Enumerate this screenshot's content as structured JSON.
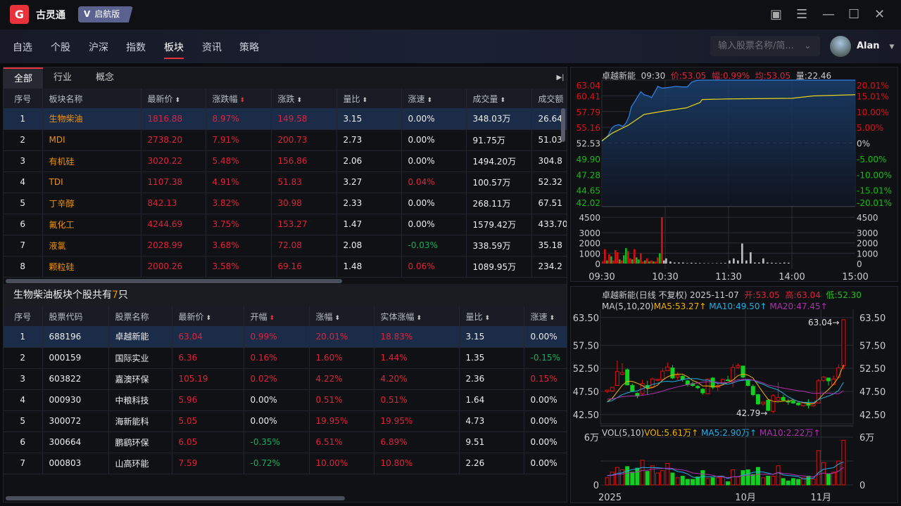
{
  "app": {
    "name": "古灵通",
    "edition": "启航版",
    "logo": "G"
  },
  "window_controls": [
    "screen-icon",
    "menu-icon",
    "minimize-icon",
    "maximize-icon",
    "close-icon"
  ],
  "nav": [
    {
      "label": "自选"
    },
    {
      "label": "个股"
    },
    {
      "label": "沪深"
    },
    {
      "label": "指数"
    },
    {
      "label": "板块",
      "active": true
    },
    {
      "label": "资讯"
    },
    {
      "label": "策略"
    }
  ],
  "search": {
    "placeholder": "输入股票名称/简..."
  },
  "user": {
    "name": "Alan"
  },
  "sector_tabs": [
    {
      "label": "全部",
      "active": true
    },
    {
      "label": "行业"
    },
    {
      "label": "概念"
    }
  ],
  "sector_table": {
    "columns": [
      "序号",
      "板块名称",
      "最新价",
      "涨跌幅",
      "涨跌",
      "量比",
      "涨速",
      "成交量",
      "成交额"
    ],
    "rows": [
      [
        "1",
        "生物柴油",
        "1816.88",
        "8.97%",
        "149.58",
        "3.15",
        "0.00%",
        "348.03万",
        "26.64"
      ],
      [
        "2",
        "MDI",
        "2738.20",
        "7.91%",
        "200.73",
        "2.73",
        "0.00%",
        "91.75万",
        "51.03"
      ],
      [
        "3",
        "有机硅",
        "3020.22",
        "5.48%",
        "156.86",
        "2.06",
        "0.00%",
        "1494.20万",
        "304.8"
      ],
      [
        "4",
        "TDI",
        "1107.38",
        "4.91%",
        "51.83",
        "3.27",
        "0.04%",
        "100.57万",
        "52.32"
      ],
      [
        "5",
        "丁辛醇",
        "842.13",
        "3.82%",
        "30.98",
        "2.33",
        "0.00%",
        "268.11万",
        "67.51"
      ],
      [
        "6",
        "氟化工",
        "4244.69",
        "3.75%",
        "153.27",
        "1.47",
        "0.00%",
        "1579.42万",
        "433.70"
      ],
      [
        "7",
        "液氯",
        "2028.99",
        "3.68%",
        "72.08",
        "2.08",
        "-0.03%",
        "338.59万",
        "35.18"
      ],
      [
        "8",
        "颗粒硅",
        "2000.26",
        "3.58%",
        "69.16",
        "1.48",
        "0.06%",
        "1089.95万",
        "234.2"
      ]
    ]
  },
  "stocks_title": {
    "prefix": "生物柴油板块个股共有",
    "count": "7",
    "suffix": "只"
  },
  "stock_table": {
    "columns": [
      "序号",
      "股票代码",
      "股票名称",
      "最新价",
      "开幅",
      "涨幅",
      "实体涨幅",
      "量比",
      "涨速"
    ],
    "rows": [
      [
        "1",
        "688196",
        "卓越新能",
        "63.04",
        "0.99%",
        "20.01%",
        "18.83%",
        "3.15",
        "0.00%"
      ],
      [
        "2",
        "000159",
        "国际实业",
        "6.36",
        "0.16%",
        "1.60%",
        "1.44%",
        "1.35",
        "-0.15%"
      ],
      [
        "3",
        "603822",
        "嘉澳环保",
        "105.19",
        "0.02%",
        "4.22%",
        "4.20%",
        "2.36",
        "0.15%"
      ],
      [
        "4",
        "000930",
        "中粮科技",
        "5.96",
        "0.00%",
        "0.51%",
        "0.51%",
        "1.64",
        "0.00%"
      ],
      [
        "5",
        "300072",
        "海新能科",
        "5.05",
        "0.00%",
        "19.95%",
        "19.95%",
        "4.73",
        "0.00%"
      ],
      [
        "6",
        "300664",
        "鹏鹞环保",
        "6.05",
        "-0.35%",
        "6.51%",
        "6.89%",
        "9.51",
        "0.00%"
      ],
      [
        "7",
        "000803",
        "山高环能",
        "7.59",
        "-0.72%",
        "10.00%",
        "10.80%",
        "2.26",
        "0.00%"
      ]
    ]
  },
  "colors": {
    "up": "#e0223c",
    "down": "#15b060",
    "accent": "#e8323c",
    "name": "#f0930b",
    "price_line": "#2f7de0",
    "avg_line": "#e6d21a"
  },
  "intraday_header": {
    "name": "卓越新能",
    "time": "09:30",
    "price": "价:53.05",
    "change": "幅:0.99%",
    "avg": "均:53.05",
    "vol": "量:22.46"
  },
  "daily_header": {
    "name": "卓越新能",
    "type": "(日线 不复权)",
    "date": "2025-11-07",
    "open": "开:53.05",
    "high": "高:63.04",
    "low": "低:52.30",
    "ma_label": "MA(5,10,20)",
    "ma5": "MA5:53.27↑",
    "ma10": "MA10:49.50↑",
    "ma20": "MA20:47.45↑",
    "vol_label": "VOL(5,10)",
    "vol": "VOL:5.61万↑",
    "vma5": "MA5:2.90万↑",
    "vma10": "MA10:2.22万↑"
  },
  "chart_data": [
    {
      "type": "line",
      "title": "卓越新能 分时",
      "prev_close": 52.53,
      "y_ticks": [
        "63.04",
        "60.41",
        "57.79",
        "55.16",
        "52.53",
        "49.90",
        "47.28",
        "44.65",
        "42.02"
      ],
      "pct_ticks": [
        "20.01%",
        "15.01%",
        "10.00%",
        "5.00%",
        "0%",
        "-5.00%",
        "-10.00%",
        "-15.01%",
        "-20.01%"
      ],
      "x_ticks": [
        "09:30",
        "10:30",
        "11:30",
        "14:00",
        "15:00"
      ],
      "price": {
        "minutes": [
          0,
          3,
          6,
          9,
          12,
          16,
          20,
          23,
          26,
          28,
          31,
          34,
          37,
          40,
          44,
          47,
          50,
          53,
          57,
          63,
          70,
          76,
          81,
          85,
          90,
          94,
          240
        ],
        "values": [
          52.8,
          53.3,
          53.8,
          54.9,
          55.4,
          55.6,
          55.3,
          55.9,
          57.1,
          58.6,
          59.4,
          60.3,
          61.1,
          60.6,
          60.4,
          60.1,
          61.0,
          62.0,
          61.7,
          61.8,
          62.0,
          61.9,
          61.9,
          62.7,
          63.0,
          63.04,
          63.04
        ]
      },
      "avg": {
        "minutes": [
          0,
          10,
          25,
          40,
          60,
          80,
          93,
          95,
          120,
          180,
          200,
          240
        ],
        "values": [
          52.9,
          54.2,
          55.5,
          57.3,
          57.9,
          58.4,
          59.3,
          59.8,
          59.9,
          60.0,
          60.4,
          60.6
        ]
      },
      "volume_ticks": [
        "4500",
        "3000",
        "2000",
        "1000",
        "0"
      ],
      "volume": [
        200,
        1400,
        300,
        900,
        700,
        300,
        1300,
        1100,
        400,
        300,
        800,
        1500,
        1200,
        500,
        400,
        1400,
        600,
        400,
        1000,
        200,
        300,
        500,
        200,
        300,
        200,
        200,
        600,
        1000,
        4500,
        300,
        500,
        200,
        100,
        100,
        100,
        50,
        80,
        60,
        50,
        40,
        30,
        30,
        40,
        50,
        60,
        300,
        500,
        300,
        1950,
        300,
        1100,
        100,
        100,
        500,
        100,
        80,
        60,
        60,
        100,
        80
      ],
      "volume_up": [
        1,
        1,
        0,
        1,
        0,
        1,
        1,
        1,
        0,
        1,
        0,
        0,
        1,
        1,
        0,
        1,
        0,
        0,
        1,
        1,
        0,
        1,
        0,
        1,
        0,
        1,
        1,
        0,
        1,
        2,
        2,
        2,
        2,
        2,
        2,
        2,
        2,
        2,
        2,
        2,
        2,
        2,
        2,
        2,
        2,
        2,
        2,
        2,
        2,
        2,
        2,
        2,
        2,
        2,
        2,
        2,
        2,
        2,
        2,
        2
      ]
    },
    {
      "type": "candlestick",
      "title": "卓越新能 日线",
      "y_ticks": [
        "63.50",
        "57.50",
        "52.50",
        "47.50",
        "42.50"
      ],
      "x_ticks": [
        "2025",
        "10月",
        "11月"
      ],
      "high_mark": "63.04→",
      "low_mark": "42.79→",
      "ohlc": [
        [
          47.5,
          47.8,
          47.2,
          47.8
        ],
        [
          47.6,
          48.5,
          47.4,
          48.4
        ],
        [
          48.8,
          54.2,
          48.8,
          51.8
        ],
        [
          51.2,
          53.6,
          51.0,
          51.6
        ],
        [
          52.2,
          52.5,
          48.8,
          48.9
        ],
        [
          48.8,
          49.2,
          47.4,
          47.6
        ],
        [
          47.1,
          47.3,
          46.0,
          46.5
        ],
        [
          47.0,
          50.0,
          46.6,
          49.2
        ],
        [
          48.8,
          49.8,
          46.8,
          48.3
        ],
        [
          48.4,
          50.5,
          48.2,
          50.2
        ],
        [
          49.9,
          50.3,
          49.7,
          50.1
        ],
        [
          50.1,
          52.5,
          49.8,
          51.9
        ],
        [
          52.0,
          53.8,
          51.9,
          52.8
        ],
        [
          52.6,
          53.2,
          50.2,
          50.4
        ],
        [
          50.6,
          51.7,
          50.0,
          51.0
        ],
        [
          50.8,
          51.0,
          49.6,
          50.1
        ],
        [
          49.8,
          50.0,
          48.6,
          49.0
        ],
        [
          49.2,
          49.6,
          48.5,
          48.8
        ],
        [
          48.6,
          48.9,
          48.0,
          48.3
        ],
        [
          48.0,
          48.2,
          46.8,
          47.2
        ],
        [
          47.0,
          50.3,
          47.0,
          50.2
        ],
        [
          50.4,
          50.6,
          48.0,
          48.4
        ],
        [
          48.4,
          49.4,
          47.6,
          48.8
        ],
        [
          49.2,
          50.3,
          49.0,
          50.1
        ],
        [
          50.0,
          50.9,
          49.8,
          49.9
        ],
        [
          49.5,
          53.4,
          48.4,
          52.7
        ],
        [
          52.7,
          53.6,
          52.4,
          53.1
        ],
        [
          53.0,
          53.1,
          50.4,
          50.6
        ],
        [
          50.0,
          50.2,
          48.6,
          48.8
        ],
        [
          48.6,
          49.0,
          46.5,
          46.8
        ],
        [
          46.8,
          47.0,
          44.6,
          44.8
        ],
        [
          44.8,
          45.3,
          44.4,
          45.2
        ],
        [
          45.6,
          45.8,
          43.2,
          43.4
        ],
        [
          43.2,
          46.9,
          42.79,
          46.6
        ],
        [
          45.6,
          49.5,
          45.4,
          46.2
        ],
        [
          46.2,
          46.7,
          45.4,
          45.6
        ],
        [
          45.4,
          45.9,
          44.6,
          45.2
        ],
        [
          45.4,
          45.9,
          44.8,
          45.0
        ],
        [
          45.0,
          45.3,
          44.4,
          44.6
        ],
        [
          44.4,
          45.1,
          44.2,
          45.0
        ],
        [
          44.9,
          45.8,
          43.8,
          44.5
        ],
        [
          44.4,
          45.0,
          44.2,
          44.9
        ],
        [
          45.0,
          50.2,
          45.0,
          49.8
        ],
        [
          49.9,
          50.8,
          49.6,
          50.6
        ],
        [
          50.4,
          50.5,
          48.8,
          49.8
        ],
        [
          49.0,
          50.9,
          49.0,
          50.2
        ],
        [
          50.6,
          53.4,
          50.4,
          52.6
        ],
        [
          53.05,
          63.04,
          52.3,
          63.04
        ]
      ],
      "volume_wan": [
        0.9,
        1.6,
        2.2,
        1.9,
        2.3,
        1.6,
        2.1,
        3.1,
        1.7,
        2.4,
        1.5,
        1.8,
        2.7,
        1.5,
        0.9,
        1.1,
        0.7,
        0.7,
        1.0,
        1.8,
        0.8,
        0.9,
        0.9,
        1.0,
        0.4,
        1.9,
        1.0,
        1.8,
        1.9,
        1.3,
        2.2,
        0.9,
        1.1,
        1.1,
        2.4,
        0.8,
        0.5,
        0.8,
        0.7,
        0.9,
        1.1,
        0.7,
        4.3,
        2.8,
        1.4,
        1.6,
        3.0,
        5.61
      ],
      "volume_ticks": [
        "6万",
        "0"
      ]
    }
  ]
}
